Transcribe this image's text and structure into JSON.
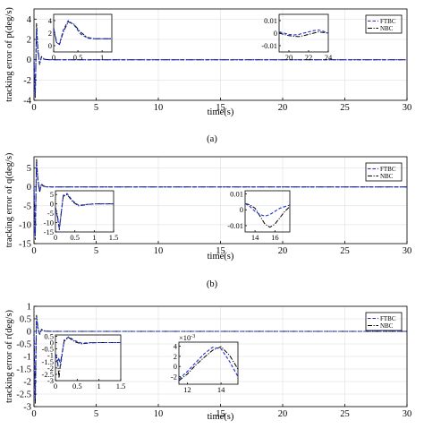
{
  "chart_data": [
    {
      "type": "line",
      "panel_label": "(a)",
      "xlabel": "time(s)",
      "ylabel": "tracking error of p(deg/s)",
      "xlim": [
        0,
        30
      ],
      "ylim": [
        -4,
        5
      ],
      "xticks": [
        "0",
        "5",
        "10",
        "15",
        "20",
        "25",
        "30"
      ],
      "yticks": [
        "-4",
        "-2",
        "0",
        "2",
        "4"
      ],
      "legend": [
        "FTBC",
        "NBC"
      ],
      "legend_position": "top-right",
      "grid": true,
      "colors": {
        "FTBC": "#1f2fd0",
        "NBC": "#000000"
      },
      "series": [
        {
          "name": "FTBC",
          "x": [
            0,
            0.1,
            0.2,
            0.3,
            0.45,
            0.6,
            0.8,
            1.0,
            1.5,
            30
          ],
          "y": [
            0,
            -3.5,
            3.0,
            0.9,
            -0.3,
            0.2,
            0.05,
            0,
            0,
            0
          ]
        },
        {
          "name": "NBC",
          "x": [
            0,
            0.1,
            0.2,
            0.3,
            0.45,
            0.6,
            0.8,
            1.0,
            1.5,
            30
          ],
          "y": [
            0,
            -3.8,
            3.6,
            1.3,
            -0.5,
            0.3,
            0.1,
            0.02,
            0,
            0
          ]
        }
      ],
      "insets": [
        {
          "xlim": [
            0,
            1.2
          ],
          "ylim": [
            -1,
            5
          ],
          "xticks": [
            "0",
            "0.5",
            "1"
          ],
          "yticks": [
            "0",
            "2",
            "4"
          ],
          "series": [
            {
              "name": "FTBC",
              "x": [
                0,
                0.06,
                0.12,
                0.2,
                0.3,
                0.42,
                0.55,
                0.7,
                0.85,
                1.0,
                1.2
              ],
              "y": [
                2.6,
                0.4,
                0.3,
                2.5,
                4.0,
                3.3,
                1.9,
                1.2,
                1.1,
                1.1,
                1.1
              ]
            },
            {
              "name": "NBC",
              "x": [
                0,
                0.06,
                0.12,
                0.2,
                0.3,
                0.42,
                0.55,
                0.7,
                0.85,
                1.0,
                1.2
              ],
              "y": [
                2.8,
                0.5,
                0.2,
                2.2,
                3.8,
                3.4,
                2.2,
                1.3,
                1.1,
                1.1,
                1.1
              ]
            }
          ]
        },
        {
          "xlim": [
            19,
            24
          ],
          "ylim": [
            -0.015,
            0.015
          ],
          "xticks": [
            "20",
            "22",
            "24"
          ],
          "yticks": [
            "0.01",
            "0",
            "-0.01"
          ],
          "series": [
            {
              "name": "FTBC",
              "x": [
                19,
                19.5,
                20,
                20.5,
                21,
                21.5,
                22,
                22.5,
                23,
                23.5,
                24
              ],
              "y": [
                0.001,
                0.0,
                -0.001,
                -0.0015,
                -0.001,
                0.0,
                0.001,
                0.002,
                0.0025,
                0.0015,
                0.0
              ]
            },
            {
              "name": "NBC",
              "x": [
                19,
                19.5,
                20,
                20.5,
                21,
                21.5,
                22,
                22.5,
                23,
                23.5,
                24
              ],
              "y": [
                0.0,
                -0.001,
                -0.002,
                -0.0025,
                -0.0028,
                -0.002,
                -0.001,
                0.0,
                0.001,
                0.0005,
                0.0
              ]
            }
          ]
        }
      ]
    },
    {
      "type": "line",
      "panel_label": "(b)",
      "xlabel": "time(s)",
      "ylabel": "tracking error of q(deg/s)",
      "xlim": [
        0,
        30
      ],
      "ylim": [
        -15,
        8
      ],
      "xticks": [
        "0",
        "5",
        "10",
        "15",
        "20",
        "25",
        "30"
      ],
      "yticks": [
        "5",
        "0",
        "-5",
        "-10",
        "-15"
      ],
      "legend": [
        "FTBC",
        "NBC"
      ],
      "legend_position": "top-right",
      "grid": true,
      "colors": {
        "FTBC": "#1f2fd0",
        "NBC": "#000000"
      },
      "series": [
        {
          "name": "FTBC",
          "x": [
            0,
            0.1,
            0.2,
            0.3,
            0.45,
            0.6,
            0.8,
            1.0,
            1.5,
            30
          ],
          "y": [
            0,
            -13,
            6.5,
            2.0,
            -1.0,
            0.6,
            0.1,
            0,
            0,
            0
          ]
        },
        {
          "name": "NBC",
          "x": [
            0,
            0.1,
            0.2,
            0.3,
            0.45,
            0.6,
            0.8,
            1.0,
            1.5,
            30
          ],
          "y": [
            0,
            -14,
            7.5,
            2.5,
            -1.4,
            0.8,
            0.2,
            0.05,
            0,
            0
          ]
        }
      ],
      "insets": [
        {
          "xlim": [
            0,
            1.5
          ],
          "ylim": [
            -15,
            7
          ],
          "xticks": [
            "0",
            "0.5",
            "1",
            "1.5"
          ],
          "yticks": [
            "5",
            "0",
            "-5",
            "-10",
            "-15"
          ],
          "series": [
            {
              "name": "FTBC",
              "x": [
                0,
                0.05,
                0.1,
                0.2,
                0.3,
                0.45,
                0.6,
                0.8,
                1.0,
                1.2,
                1.5
              ],
              "y": [
                -3,
                -7,
                -14,
                4.5,
                5.5,
                1.5,
                -0.8,
                -0.3,
                0,
                0,
                0
              ]
            },
            {
              "name": "NBC",
              "x": [
                0,
                0.05,
                0.1,
                0.2,
                0.3,
                0.45,
                0.6,
                0.8,
                1.0,
                1.2,
                1.5
              ],
              "y": [
                -2,
                -6,
                -13,
                4.0,
                5.0,
                1.0,
                -1.1,
                -0.4,
                0,
                0,
                0
              ]
            }
          ]
        },
        {
          "xlim": [
            13,
            17.5
          ],
          "ylim": [
            -0.014,
            0.012
          ],
          "xticks": [
            "14",
            "16"
          ],
          "yticks": [
            "0.01",
            "0",
            "-0.01"
          ],
          "series": [
            {
              "name": "FTBC",
              "x": [
                13,
                13.5,
                14,
                14.5,
                15,
                15.5,
                16,
                16.5,
                17,
                17.5
              ],
              "y": [
                0.004,
                0.002,
                -0.001,
                -0.003,
                -0.004,
                -0.003,
                -0.001,
                0.001,
                0.002,
                0.003
              ]
            },
            {
              "name": "NBC",
              "x": [
                13,
                13.5,
                14,
                14.5,
                15,
                15.5,
                16,
                16.5,
                17,
                17.5
              ],
              "y": [
                0.004,
                0.003,
                0.001,
                -0.004,
                -0.009,
                -0.011,
                -0.009,
                -0.005,
                -0.001,
                0.002
              ]
            }
          ]
        }
      ]
    },
    {
      "type": "line",
      "panel_label": "",
      "xlabel": "time(s)",
      "ylabel": "tracking error of r(deg/s)",
      "xlim": [
        0,
        30
      ],
      "ylim": [
        -3,
        1
      ],
      "xticks": [
        "0",
        "5",
        "10",
        "15",
        "20",
        "25",
        "30"
      ],
      "yticks": [
        "1",
        "0.5",
        "0",
        "-0.5",
        "-1",
        "-1.5",
        "-2",
        "-2.5",
        "-3"
      ],
      "legend": [
        "FTBC",
        "NBC"
      ],
      "legend_position": "top-right",
      "grid": true,
      "colors": {
        "FTBC": "#1f2fd0",
        "NBC": "#000000"
      },
      "series": [
        {
          "name": "FTBC",
          "x": [
            0,
            0.1,
            0.2,
            0.3,
            0.45,
            0.6,
            0.8,
            1.0,
            1.5,
            30
          ],
          "y": [
            0,
            -2.7,
            0.55,
            0.15,
            -0.1,
            0.05,
            0.02,
            0,
            0,
            0
          ]
        },
        {
          "name": "NBC",
          "x": [
            0,
            0.1,
            0.2,
            0.3,
            0.45,
            0.6,
            0.8,
            1.0,
            1.5,
            30
          ],
          "y": [
            0,
            -2.9,
            0.65,
            0.2,
            -0.15,
            0.08,
            0.03,
            0.01,
            0,
            0
          ]
        }
      ],
      "insets": [
        {
          "xlim": [
            0,
            1.5
          ],
          "ylim": [
            -3,
            0.6
          ],
          "xticks": [
            "0",
            "0.5",
            "1",
            "1.5"
          ],
          "yticks": [
            "0.5",
            "0",
            "-0.5",
            "-1",
            "-1.5",
            "-2",
            "-2.5",
            "-3"
          ],
          "series": [
            {
              "name": "FTBC",
              "x": [
                0,
                0.05,
                0.08,
                0.12,
                0.2,
                0.3,
                0.45,
                0.6,
                0.8,
                1.0,
                1.5
              ],
              "y": [
                -1.0,
                -1.6,
                -1.2,
                -1.8,
                0.2,
                0.45,
                0.15,
                -0.05,
                0.0,
                0.0,
                0.0
              ]
            },
            {
              "name": "NBC",
              "x": [
                0,
                0.05,
                0.08,
                0.12,
                0.2,
                0.3,
                0.45,
                0.6,
                0.8,
                1.0,
                1.5
              ],
              "y": [
                -0.9,
                -1.4,
                -2.8,
                -1.5,
                0.1,
                0.4,
                0.05,
                -0.1,
                -0.02,
                0.0,
                0.0
              ]
            }
          ]
        },
        {
          "xlim": [
            11.5,
            15
          ],
          "ylim": [
            -3.5,
            4.8
          ],
          "ylabel": "×10^-3",
          "xticks": [
            "12",
            "14"
          ],
          "yticks": [
            "4",
            "2",
            "0",
            "-2"
          ],
          "series": [
            {
              "name": "FTBC",
              "x": [
                11.5,
                12,
                12.5,
                13,
                13.5,
                14,
                14.5,
                15
              ],
              "y": [
                -2.5,
                -1.0,
                0.8,
                2.5,
                3.8,
                3.5,
                1.0,
                -2.0
              ]
            },
            {
              "name": "NBC",
              "x": [
                11.5,
                12,
                12.5,
                13,
                13.5,
                14,
                14.5,
                15
              ],
              "y": [
                -2.8,
                -1.5,
                0.3,
                1.8,
                3.2,
                3.9,
                2.2,
                -0.5
              ]
            }
          ]
        }
      ]
    }
  ]
}
